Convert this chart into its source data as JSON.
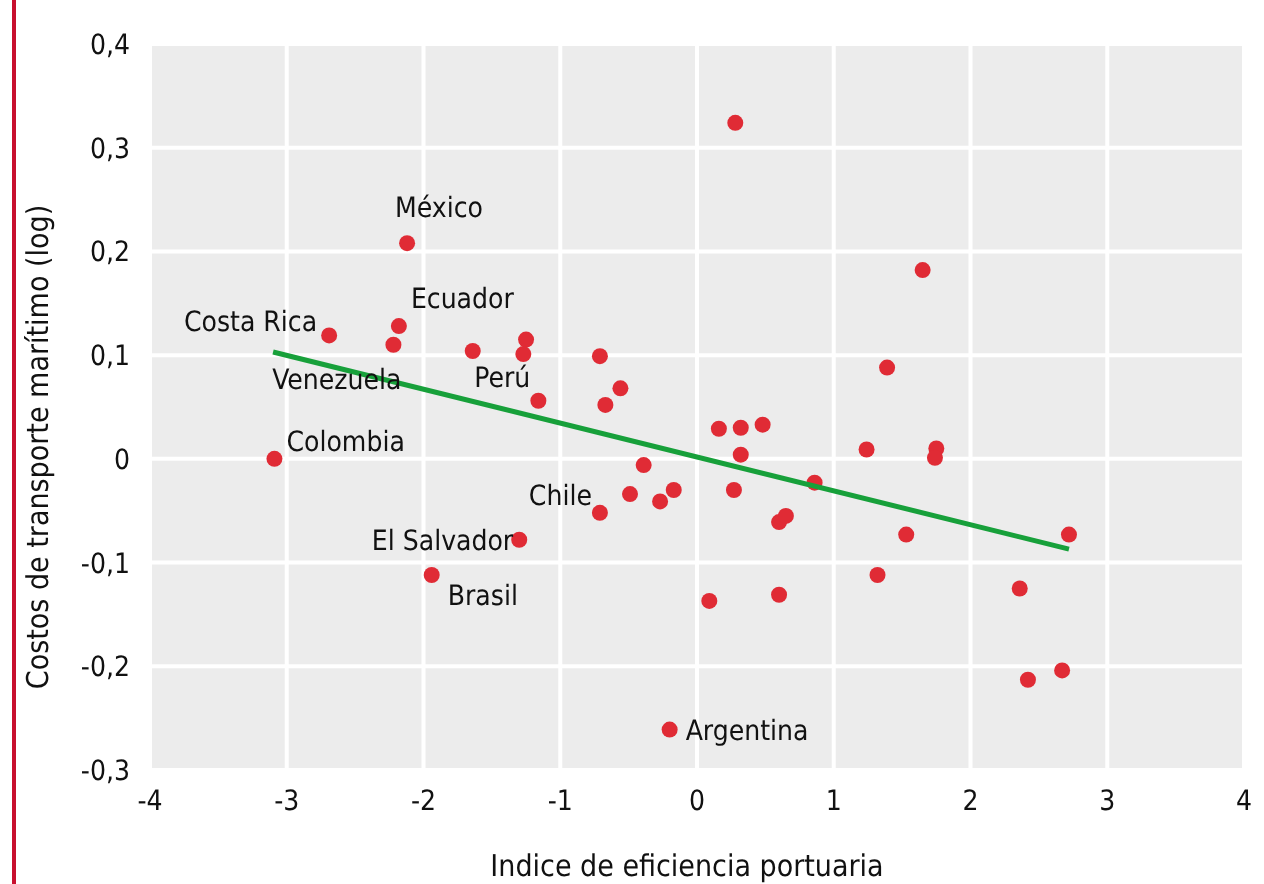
{
  "chart_data": {
    "type": "scatter",
    "xlabel": "Indice de eficiencia portuaria",
    "ylabel": "Costos de transporte marítimo (log)",
    "xlim": [
      -4,
      4
    ],
    "ylim": [
      -0.3,
      0.4
    ],
    "xticks": [
      -4,
      -3,
      -2,
      -1,
      0,
      1,
      2,
      3,
      4
    ],
    "yticks": [
      {
        "value": -0.3,
        "label": "-0,3"
      },
      {
        "value": -0.2,
        "label": "-0,2"
      },
      {
        "value": -0.1,
        "label": "-0,1"
      },
      0,
      {
        "value": 0.1,
        "label": "0,1"
      },
      {
        "value": 0.2,
        "label": "0,2"
      },
      {
        "value": 0.3,
        "label": "0,3"
      },
      {
        "value": 0.4,
        "label": "0,4"
      }
    ],
    "grid": true,
    "marker": "circle",
    "series": [
      {
        "color": "#e02b35",
        "x": [
          0.28,
          -2.12,
          -2.69,
          -2.18,
          -2.22,
          -1.64,
          -1.25,
          -1.27,
          -1.16,
          -0.71,
          -0.56,
          -0.67,
          0.16,
          0.32,
          1.65,
          1.39,
          0.48,
          -3.09,
          -0.39,
          -0.49,
          -0.17,
          -0.27,
          -0.71,
          -1.3,
          -1.94,
          0.09,
          -0.2,
          0.27,
          0.32,
          0.86,
          0.6,
          0.65,
          1.24,
          1.75,
          1.74,
          1.53,
          2.72,
          1.32,
          0.6,
          2.36,
          2.42,
          2.67
        ],
        "values": [
          0.324,
          0.208,
          0.119,
          0.128,
          0.11,
          0.104,
          0.115,
          0.101,
          0.056,
          0.099,
          0.068,
          0.052,
          0.029,
          0.03,
          0.182,
          0.088,
          0.033,
          0.0,
          -0.006,
          -0.034,
          -0.03,
          -0.041,
          -0.052,
          -0.078,
          -0.112,
          -0.137,
          -0.261,
          -0.03,
          0.004,
          -0.023,
          -0.061,
          -0.055,
          0.009,
          0.01,
          0.001,
          -0.073,
          -0.073,
          -0.112,
          -0.131,
          -0.125,
          -0.213,
          -0.204
        ]
      },
      {
        "type": "line",
        "color": "#17a03a",
        "x": [
          -3.1,
          2.72
        ],
        "values": [
          0.103,
          -0.087
        ],
        "marker": "none"
      }
    ],
    "annotations": [
      {
        "text": "México",
        "x": -2.12,
        "y": 0.208
      },
      {
        "text": "Costa Rica",
        "x": -2.69,
        "y": 0.119
      },
      {
        "text": "Ecuador",
        "x": -2.18,
        "y": 0.128
      },
      {
        "text": "Venezuela",
        "x": -2.22,
        "y": 0.11
      },
      {
        "text": "Perú",
        "x": -1.16,
        "y": 0.056
      },
      {
        "text": "Colombia",
        "x": -3.09,
        "y": 0.0
      },
      {
        "text": "Chile",
        "x": -0.71,
        "y": -0.052
      },
      {
        "text": "El Salvador",
        "x": -1.3,
        "y": -0.078
      },
      {
        "text": "Brasil",
        "x": -1.94,
        "y": -0.112
      },
      {
        "text": "Argentina",
        "x": -0.2,
        "y": -0.261
      }
    ]
  }
}
